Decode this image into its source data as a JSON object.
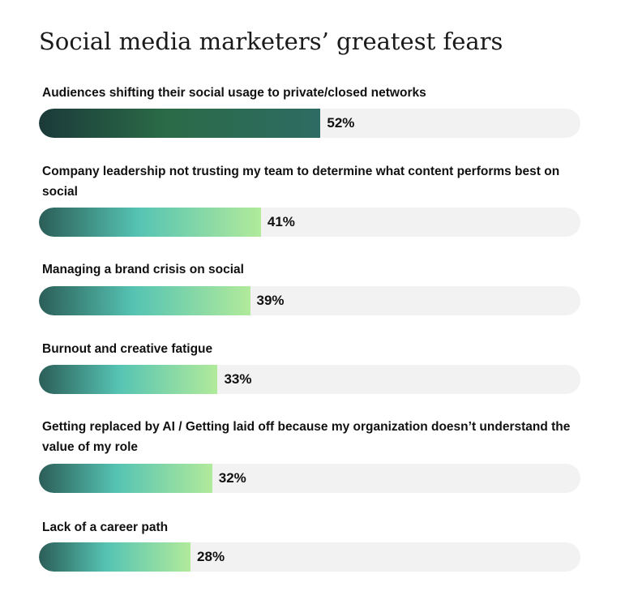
{
  "chart_data": {
    "type": "bar",
    "orientation": "horizontal",
    "title": "Social media marketers’ greatest fears",
    "categories": [
      "Audiences shifting their social usage to private/closed networks",
      "Company leadership not trusting my team to determine what content performs best on social",
      "Managing a brand crisis on social",
      "Burnout and creative fatigue",
      "Getting replaced by AI / Getting laid off because my organization doesn’t understand the value of my role",
      "Lack of a career path"
    ],
    "values": [
      52,
      41,
      39,
      33,
      32,
      28
    ],
    "value_labels": [
      "52%",
      "41%",
      "39%",
      "33%",
      "32%",
      "28%"
    ],
    "unit": "%",
    "xlim": [
      0,
      100
    ],
    "grid": false,
    "legend": "none",
    "highlight_index": 0,
    "colors": {
      "highlight_start": "#1b3a3a",
      "highlight_mid": "#2b6b47",
      "highlight_end": "#2e6b63",
      "bar_start": "#2b5e58",
      "bar_mid": "#56c4b3",
      "bar_end": "#b1ea9b",
      "track": "#f2f2f2"
    }
  }
}
